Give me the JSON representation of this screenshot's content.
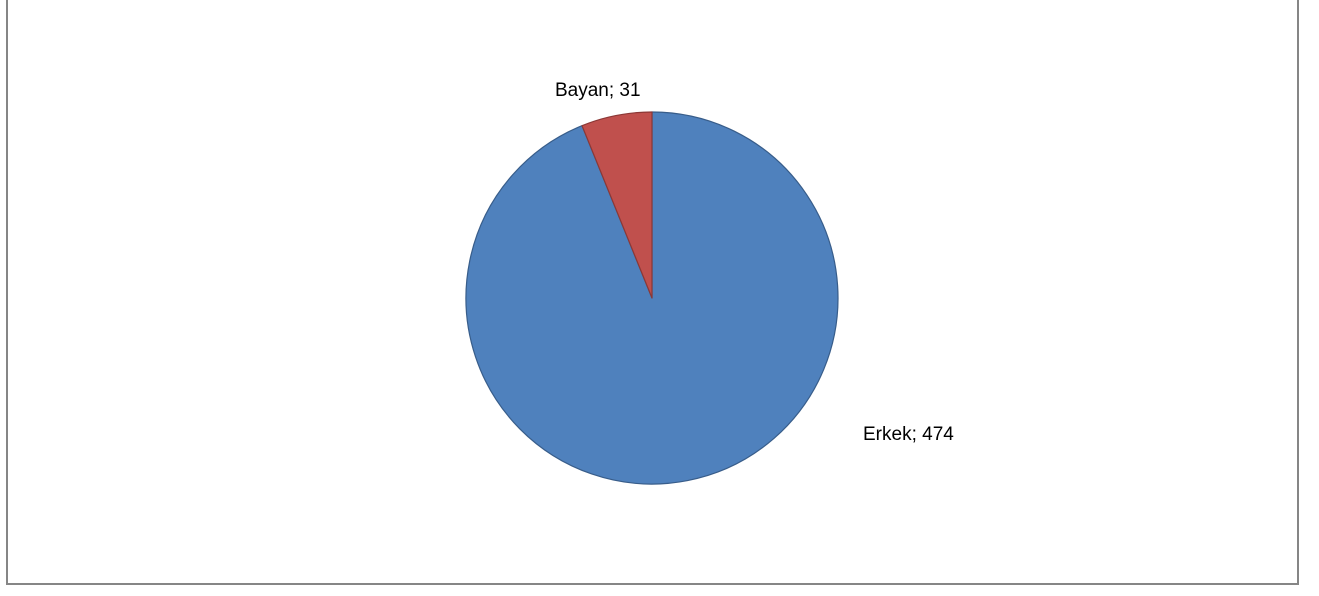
{
  "chart_data": {
    "type": "pie",
    "title": "",
    "categories": [
      "Erkek",
      "Bayan"
    ],
    "values": [
      474,
      31
    ],
    "colors": [
      "#4F81BD",
      "#C0504D"
    ],
    "border_colors": [
      "#385D8A",
      "#8C3836"
    ],
    "data_labels": [
      "Erkek; 474",
      "Bayan; 31"
    ],
    "start_angle_deg": 0,
    "direction": "clockwise",
    "legend": "none"
  }
}
